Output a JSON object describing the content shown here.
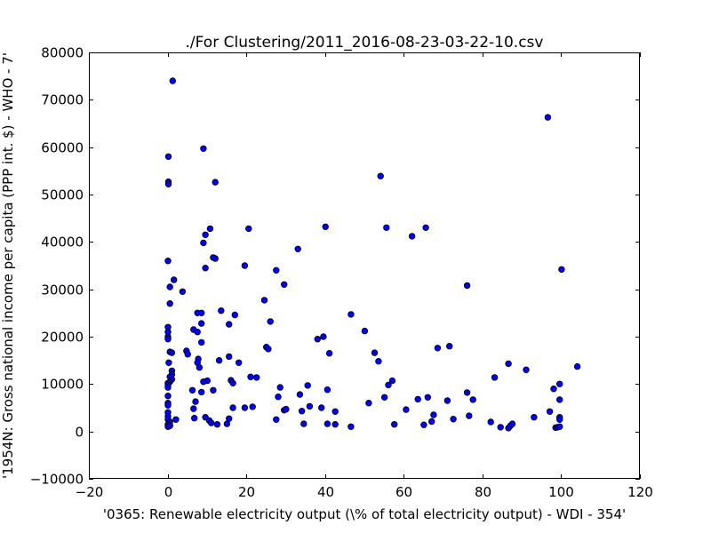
{
  "chart_data": {
    "type": "scatter",
    "title": "./For Clustering/2011_2016-08-23-03-22-10.csv",
    "xlabel": "'0365: Renewable electricity output  (\\% of total electricity output) - WDI - 354'",
    "ylabel": "'1954N: Gross national income per capita (PPP int. $) - WHO - 7'",
    "xlim": [
      -20,
      120
    ],
    "ylim": [
      -10000,
      80000
    ],
    "xticks": [
      -20,
      0,
      20,
      40,
      60,
      80,
      100,
      120
    ],
    "yticks": [
      -10000,
      0,
      10000,
      20000,
      30000,
      40000,
      50000,
      60000,
      70000,
      80000
    ],
    "grid": false,
    "colors": {
      "marker_fill": "#0000ff",
      "marker_edge": "#000000"
    },
    "points": [
      [
        1.3,
        74000
      ],
      [
        0.2,
        58000
      ],
      [
        0.2,
        52700
      ],
      [
        0.2,
        52200
      ],
      [
        0.1,
        36000
      ],
      [
        1.6,
        32000
      ],
      [
        0.6,
        30500
      ],
      [
        3.8,
        29500
      ],
      [
        0.6,
        27000
      ],
      [
        0.1,
        22000
      ],
      [
        0.1,
        21000
      ],
      [
        0.1,
        20000
      ],
      [
        0.1,
        19500
      ],
      [
        0.6,
        16800
      ],
      [
        1.1,
        16600
      ],
      [
        0.3,
        14500
      ],
      [
        1.1,
        12800
      ],
      [
        1.1,
        12000
      ],
      [
        0.6,
        11500
      ],
      [
        1.1,
        11000
      ],
      [
        0.6,
        10500
      ],
      [
        0.1,
        10200
      ],
      [
        0.1,
        9800
      ],
      [
        0.1,
        9300
      ],
      [
        0.1,
        7500
      ],
      [
        0.1,
        6000
      ],
      [
        0.1,
        5500
      ],
      [
        0.1,
        4000
      ],
      [
        0.1,
        3200
      ],
      [
        0.1,
        2500
      ],
      [
        0.6,
        2000
      ],
      [
        0.1,
        1500
      ],
      [
        0.1,
        1000
      ],
      [
        0.6,
        1200
      ],
      [
        2.1,
        2500
      ],
      [
        9.1,
        59700
      ],
      [
        12.1,
        52600
      ],
      [
        10.8,
        42800
      ],
      [
        12.1,
        36500
      ],
      [
        11.6,
        36700
      ],
      [
        9.6,
        41500
      ],
      [
        9.1,
        39800
      ],
      [
        9.6,
        34500
      ],
      [
        7.6,
        25000
      ],
      [
        8.6,
        25000
      ],
      [
        6.6,
        21500
      ],
      [
        7.6,
        21000
      ],
      [
        8.6,
        22800
      ],
      [
        8.6,
        18800
      ],
      [
        4.8,
        17000
      ],
      [
        5.1,
        16300
      ],
      [
        7.8,
        15300
      ],
      [
        7.6,
        14500
      ],
      [
        8.1,
        13500
      ],
      [
        10.1,
        10700
      ],
      [
        9.1,
        10500
      ],
      [
        6.3,
        8700
      ],
      [
        8.6,
        8300
      ],
      [
        11.6,
        8700
      ],
      [
        7.1,
        6300
      ],
      [
        6.6,
        4800
      ],
      [
        9.6,
        3000
      ],
      [
        10.6,
        2300
      ],
      [
        6.8,
        2800
      ],
      [
        11.1,
        1800
      ],
      [
        12.6,
        1500
      ],
      [
        13.6,
        25500
      ],
      [
        13.1,
        15000
      ],
      [
        15.6,
        22600
      ],
      [
        17.1,
        24600
      ],
      [
        15.6,
        15800
      ],
      [
        18.1,
        14500
      ],
      [
        16.1,
        10800
      ],
      [
        16.6,
        10200
      ],
      [
        16.6,
        5000
      ],
      [
        19.6,
        5000
      ],
      [
        15.6,
        2700
      ],
      [
        15.1,
        1600
      ],
      [
        19.6,
        35000
      ],
      [
        20.6,
        42800
      ],
      [
        21.1,
        11500
      ],
      [
        22.6,
        11400
      ],
      [
        21.6,
        5200
      ],
      [
        24.6,
        27700
      ],
      [
        25.1,
        17800
      ],
      [
        25.6,
        17400
      ],
      [
        26.1,
        23200
      ],
      [
        27.6,
        34000
      ],
      [
        28.6,
        9300
      ],
      [
        28.1,
        7300
      ],
      [
        29.6,
        4500
      ],
      [
        30.1,
        4700
      ],
      [
        27.6,
        2500
      ],
      [
        29.6,
        31000
      ],
      [
        33.1,
        38500
      ],
      [
        33.6,
        7800
      ],
      [
        34.1,
        4300
      ],
      [
        34.6,
        1600
      ],
      [
        35.6,
        9700
      ],
      [
        36.1,
        5300
      ],
      [
        38.1,
        19500
      ],
      [
        39.6,
        20000
      ],
      [
        40.1,
        43200
      ],
      [
        41.1,
        16500
      ],
      [
        40.6,
        8800
      ],
      [
        39.1,
        5000
      ],
      [
        40.6,
        1600
      ],
      [
        42.6,
        4200
      ],
      [
        42.6,
        1500
      ],
      [
        46.6,
        24700
      ],
      [
        46.6,
        1000
      ],
      [
        50.1,
        21200
      ],
      [
        51.1,
        6000
      ],
      [
        52.6,
        16600
      ],
      [
        53.6,
        14800
      ],
      [
        54.1,
        53900
      ],
      [
        55.6,
        43000
      ],
      [
        55.1,
        7200
      ],
      [
        56.1,
        9800
      ],
      [
        57.1,
        10700
      ],
      [
        57.6,
        1500
      ],
      [
        62.1,
        41200
      ],
      [
        60.6,
        4600
      ],
      [
        63.6,
        6800
      ],
      [
        65.6,
        43000
      ],
      [
        66.1,
        7200
      ],
      [
        65.1,
        1400
      ],
      [
        67.1,
        2100
      ],
      [
        68.6,
        17600
      ],
      [
        67.6,
        3500
      ],
      [
        71.1,
        6500
      ],
      [
        71.6,
        18000
      ],
      [
        72.6,
        2600
      ],
      [
        76.1,
        30800
      ],
      [
        76.1,
        8200
      ],
      [
        76.6,
        3300
      ],
      [
        77.6,
        6700
      ],
      [
        82.1,
        2000
      ],
      [
        83.1,
        11400
      ],
      [
        84.6,
        900
      ],
      [
        86.6,
        700
      ],
      [
        86.6,
        14300
      ],
      [
        87.1,
        1200
      ],
      [
        87.6,
        1600
      ],
      [
        91.1,
        13000
      ],
      [
        93.1,
        3000
      ],
      [
        96.6,
        66300
      ],
      [
        97.1,
        4200
      ],
      [
        98.1,
        9000
      ],
      [
        98.6,
        800
      ],
      [
        99.1,
        900
      ],
      [
        99.6,
        10000
      ],
      [
        99.6,
        3000
      ],
      [
        99.6,
        2500
      ],
      [
        99.6,
        6700
      ],
      [
        99.6,
        1000
      ],
      [
        100.1,
        34200
      ],
      [
        104.1,
        13700
      ]
    ]
  }
}
